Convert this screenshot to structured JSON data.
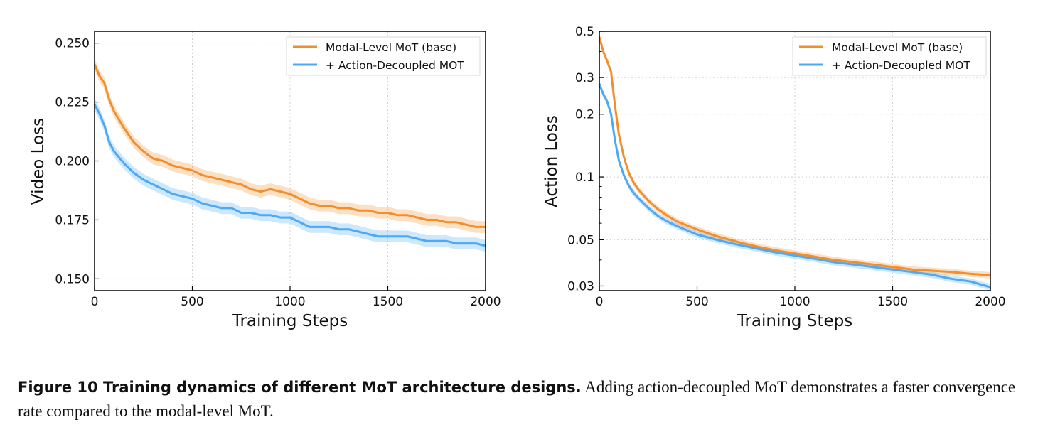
{
  "chart_data": [
    {
      "type": "line",
      "xlabel": "Training Steps",
      "ylabel": "Video Loss",
      "xlim": [
        0,
        2000
      ],
      "ylim": [
        0.145,
        0.255
      ],
      "y_scale": "linear",
      "xticks": [
        "0",
        "500",
        "1000",
        "1500",
        "2000"
      ],
      "yticks": [
        "0.150",
        "0.175",
        "0.200",
        "0.225",
        "0.250"
      ],
      "grid": true,
      "legend_position": "top-right",
      "series": [
        {
          "name": "Modal-Level MoT (base)",
          "color": "#F28E2B",
          "x": [
            0,
            25,
            50,
            75,
            100,
            150,
            200,
            250,
            300,
            350,
            400,
            450,
            500,
            550,
            600,
            650,
            700,
            750,
            800,
            850,
            900,
            950,
            1000,
            1050,
            1100,
            1150,
            1200,
            1250,
            1300,
            1350,
            1400,
            1450,
            1500,
            1550,
            1600,
            1650,
            1700,
            1750,
            1800,
            1850,
            1900,
            1950,
            2000
          ],
          "y": [
            0.241,
            0.236,
            0.233,
            0.226,
            0.221,
            0.214,
            0.208,
            0.204,
            0.201,
            0.2,
            0.198,
            0.197,
            0.196,
            0.194,
            0.193,
            0.192,
            0.191,
            0.19,
            0.188,
            0.187,
            0.188,
            0.187,
            0.186,
            0.184,
            0.182,
            0.181,
            0.181,
            0.18,
            0.18,
            0.179,
            0.179,
            0.178,
            0.178,
            0.177,
            0.177,
            0.176,
            0.175,
            0.175,
            0.174,
            0.174,
            0.173,
            0.172,
            0.172
          ]
        },
        {
          "name": "+ Action-Decoupled MOT",
          "color": "#4DA8F5",
          "x": [
            0,
            25,
            50,
            75,
            100,
            150,
            200,
            250,
            300,
            350,
            400,
            450,
            500,
            550,
            600,
            650,
            700,
            750,
            800,
            850,
            900,
            950,
            1000,
            1050,
            1100,
            1150,
            1200,
            1250,
            1300,
            1350,
            1400,
            1450,
            1500,
            1550,
            1600,
            1650,
            1700,
            1750,
            1800,
            1850,
            1900,
            1950,
            2000
          ],
          "y": [
            0.224,
            0.22,
            0.215,
            0.208,
            0.204,
            0.199,
            0.195,
            0.192,
            0.19,
            0.188,
            0.186,
            0.185,
            0.184,
            0.182,
            0.181,
            0.18,
            0.18,
            0.178,
            0.178,
            0.177,
            0.177,
            0.176,
            0.176,
            0.174,
            0.172,
            0.172,
            0.172,
            0.171,
            0.171,
            0.17,
            0.169,
            0.168,
            0.168,
            0.168,
            0.168,
            0.167,
            0.166,
            0.166,
            0.166,
            0.165,
            0.165,
            0.165,
            0.164
          ]
        }
      ]
    },
    {
      "type": "line",
      "xlabel": "Training Steps",
      "ylabel": "Action Loss",
      "xlim": [
        0,
        2000
      ],
      "ylim": [
        0.0285,
        0.5
      ],
      "y_scale": "log",
      "xticks": [
        "0",
        "500",
        "1000",
        "1500",
        "2000"
      ],
      "yticks": [
        "0.03",
        "0.05",
        "0.1",
        "0.2",
        "0.3",
        "0.5"
      ],
      "grid": true,
      "legend_position": "top-right",
      "series": [
        {
          "name": "Modal-Level MoT (base)",
          "color": "#F28E2B",
          "x": [
            0,
            20,
            40,
            60,
            80,
            100,
            125,
            150,
            175,
            200,
            250,
            300,
            350,
            400,
            500,
            600,
            700,
            800,
            900,
            1000,
            1100,
            1200,
            1300,
            1400,
            1500,
            1600,
            1700,
            1800,
            1900,
            2000
          ],
          "y": [
            0.47,
            0.4,
            0.36,
            0.32,
            0.22,
            0.16,
            0.125,
            0.105,
            0.094,
            0.087,
            0.077,
            0.07,
            0.065,
            0.061,
            0.056,
            0.052,
            0.049,
            0.0465,
            0.0445,
            0.043,
            0.0415,
            0.04,
            0.039,
            0.038,
            0.037,
            0.036,
            0.0355,
            0.035,
            0.0343,
            0.0338
          ]
        },
        {
          "name": "+ Action-Decoupled MOT",
          "color": "#4DA8F5",
          "x": [
            0,
            20,
            40,
            60,
            80,
            100,
            125,
            150,
            175,
            200,
            250,
            300,
            350,
            400,
            500,
            600,
            700,
            800,
            900,
            1000,
            1100,
            1200,
            1300,
            1400,
            1500,
            1600,
            1700,
            1800,
            1900,
            2000
          ],
          "y": [
            0.28,
            0.25,
            0.23,
            0.2,
            0.15,
            0.12,
            0.102,
            0.091,
            0.084,
            0.079,
            0.071,
            0.065,
            0.061,
            0.058,
            0.053,
            0.05,
            0.0475,
            0.0455,
            0.0435,
            0.042,
            0.0405,
            0.039,
            0.038,
            0.037,
            0.036,
            0.035,
            0.034,
            0.0325,
            0.0315,
            0.0296
          ]
        }
      ]
    }
  ],
  "legend": {
    "base": "Modal-Level MoT (base)",
    "decoupled": "+ Action-Decoupled MOT"
  },
  "caption": {
    "bold": "Figure 10  Training dynamics of different MoT architecture designs.",
    "text": " Adding action-decoupled MoT demonstrates a faster convergence rate compared to the modal-level MoT."
  }
}
